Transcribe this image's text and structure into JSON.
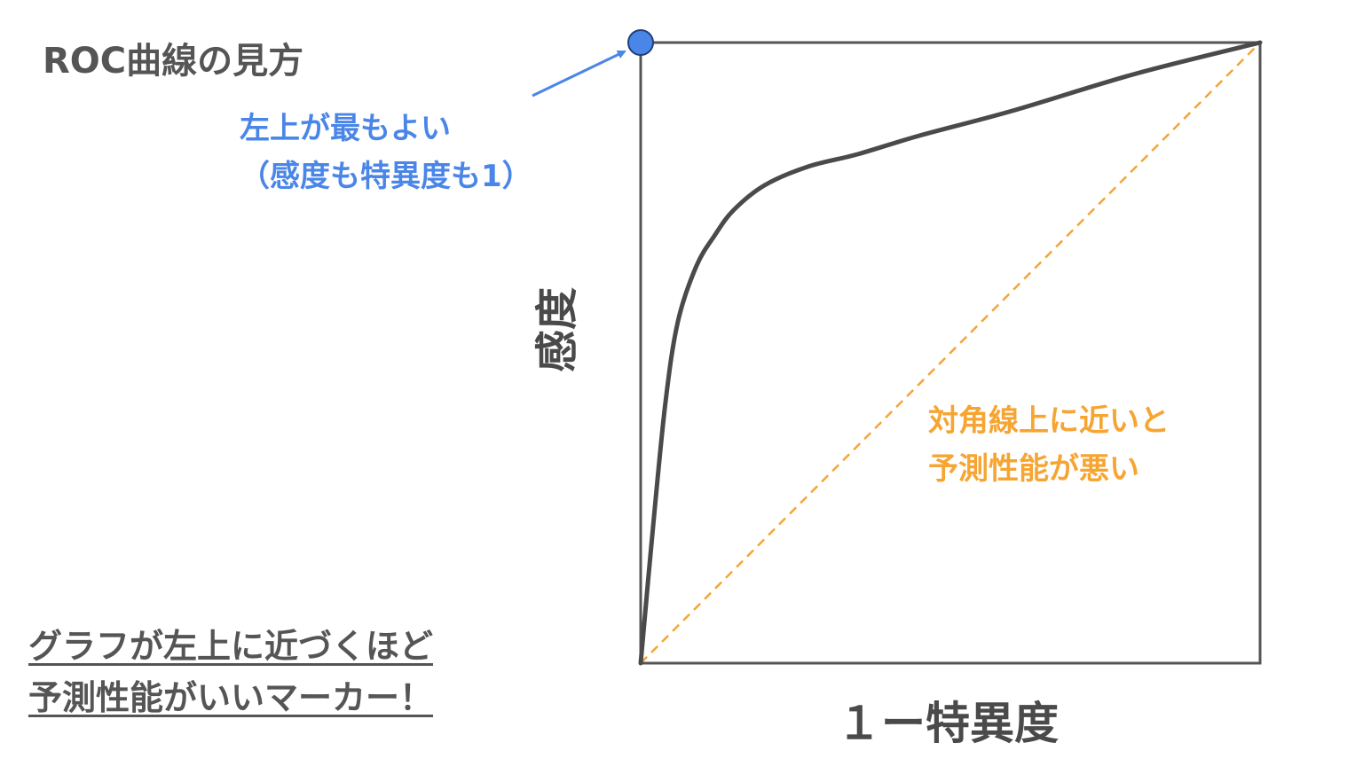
{
  "title": "ROC曲線の見方",
  "annotation_top_left": {
    "line1": "左上が最もよい",
    "line2": "（感度も特異度も1）"
  },
  "annotation_diagonal": {
    "line1": "対角線上に近いと",
    "line2": "予測性能が悪い"
  },
  "bottom_note": {
    "line1": "グラフが左上に近づくほど",
    "line2": "予測性能がいいマーカー！"
  },
  "colors": {
    "curve": "#4a4a4a",
    "diagonal": "#f6a533",
    "highlight": "#4a86e8",
    "axis": "#555555"
  },
  "chart_data": {
    "type": "line",
    "xlabel": "１ー特異度",
    "ylabel": "感度",
    "xlim": [
      0,
      1
    ],
    "ylim": [
      0,
      1
    ],
    "grid": false,
    "series": [
      {
        "style": "solid",
        "x": [
          0,
          0.02,
          0.04,
          0.06,
          0.09,
          0.12,
          0.15,
          0.2,
          0.27,
          0.35,
          0.45,
          0.6,
          0.8,
          1.0
        ],
        "y": [
          0,
          0.22,
          0.42,
          0.55,
          0.64,
          0.69,
          0.73,
          0.77,
          0.8,
          0.82,
          0.85,
          0.89,
          0.95,
          1.0
        ]
      },
      {
        "style": "dashed",
        "x": [
          0,
          1
        ],
        "y": [
          0,
          1
        ]
      }
    ],
    "highlight_point": {
      "x": 0,
      "y": 1
    }
  }
}
